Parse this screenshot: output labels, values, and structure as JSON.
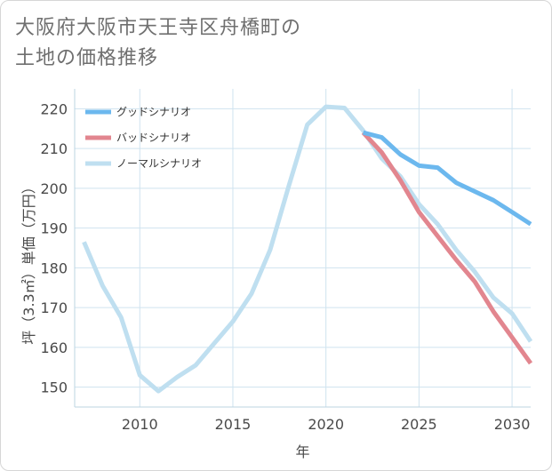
{
  "title_line1": "大阪府大阪市天王寺区舟橋町の",
  "title_line2": "土地の価格推移",
  "chart_data": {
    "type": "line",
    "xlabel": "年",
    "ylabel": "坪（3.3㎡）単価（万円）",
    "xlim": [
      2006.5,
      2031
    ],
    "ylim": [
      145,
      225
    ],
    "xticks": [
      2010,
      2015,
      2020,
      2025,
      2030
    ],
    "yticks": [
      150,
      160,
      170,
      180,
      190,
      200,
      210,
      220
    ],
    "grid": true,
    "legend_position": "top-left",
    "series": [
      {
        "name": "グッドシナリオ",
        "color": "#6cb8ee",
        "x": [
          2022,
          2023,
          2024,
          2025,
          2026,
          2027,
          2028,
          2029,
          2030,
          2031
        ],
        "y": [
          214.0,
          212.8,
          208.5,
          205.7,
          205.2,
          201.4,
          199.2,
          197.0,
          194.0,
          191.0
        ]
      },
      {
        "name": "バッドシナリオ",
        "color": "#e2868f",
        "x": [
          2022,
          2023,
          2024,
          2025,
          2026,
          2027,
          2028,
          2029,
          2030,
          2031
        ],
        "y": [
          214.0,
          209.0,
          202.0,
          194.0,
          188.0,
          182.0,
          176.5,
          169.0,
          162.5,
          156.0
        ]
      },
      {
        "name": "ノーマルシナリオ",
        "color": "#bfdff0",
        "x": [
          2007,
          2008,
          2009,
          2010,
          2011,
          2012,
          2013,
          2014,
          2015,
          2016,
          2017,
          2018,
          2019,
          2020,
          2021,
          2022,
          2023,
          2024,
          2025,
          2026,
          2027,
          2028,
          2029,
          2030,
          2031
        ],
        "y": [
          186.5,
          175.5,
          167.5,
          153.0,
          149.0,
          152.5,
          155.5,
          161.0,
          166.5,
          173.5,
          184.5,
          200.5,
          216.0,
          220.5,
          220.2,
          214.5,
          207.5,
          203.0,
          196.0,
          191.0,
          184.5,
          179.0,
          172.5,
          168.5,
          161.5
        ]
      }
    ]
  }
}
